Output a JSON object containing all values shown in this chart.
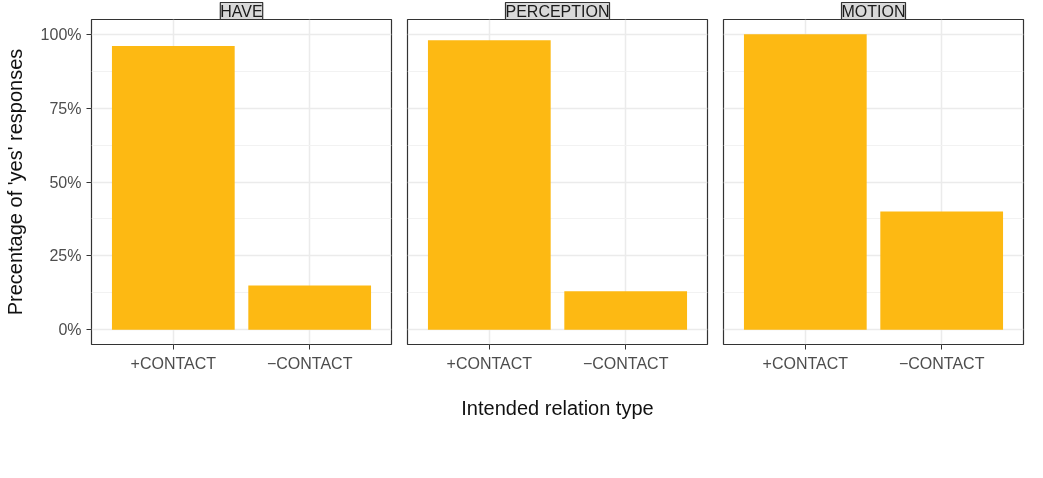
{
  "chart_data": [
    {
      "type": "bar",
      "title": "HAVE",
      "ylabel": "Precentage of 'yes' responses",
      "categories": [
        "+CONTACT",
        "−CONTACT"
      ],
      "values": [
        96,
        15
      ],
      "color": "#fdb913",
      "ylim": [
        -5,
        105
      ],
      "yticks": [
        {
          "value": 0,
          "label": "0%"
        },
        {
          "value": 25,
          "label": "25%"
        },
        {
          "value": 50,
          "label": "50%"
        },
        {
          "value": 75,
          "label": "75%"
        },
        {
          "value": 100,
          "label": "100%"
        }
      ],
      "grid": true
    },
    {
      "type": "bar",
      "title": "PERCEPTION",
      "xlabel": "Intended relation type",
      "categories": [
        "+CONTACT",
        "−CONTACT"
      ],
      "values": [
        98,
        13
      ],
      "color": "#fdb913",
      "ylim": [
        -5,
        105
      ],
      "yticks": [
        0,
        25,
        50,
        75,
        100
      ],
      "grid": true,
      "tick_labels": "x"
    },
    {
      "type": "bar",
      "title": "MOTION",
      "categories": [
        "+CONTACT",
        "−CONTACT"
      ],
      "values": [
        100,
        40
      ],
      "color": "#fdb913",
      "ylim": [
        -5,
        105
      ],
      "yticks": [
        0,
        25,
        50,
        75,
        100
      ],
      "grid": true,
      "tick_labels": "x"
    }
  ]
}
